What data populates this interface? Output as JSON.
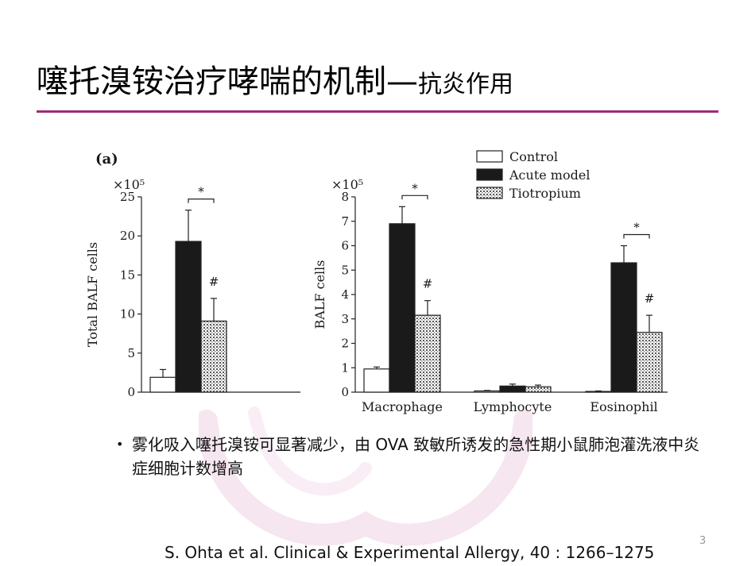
{
  "slide": {
    "title_main": "噻托溴铵治疗哮喘的机制—",
    "title_sub": "抗炎作用",
    "accent_color": "#9e2a78",
    "bullet_icon": "bullet-dot",
    "bullet_text": "雾化吸入噻托溴铵可显著减少，由 OVA 致敏所诱发的急性期小鼠肺泡灌洗液中炎症细胞计数增高",
    "page_number": "3",
    "citation": "S. Ohta et al. Clinical & Experimental Allergy, 40 : 1266–1275"
  },
  "chart_data": [
    {
      "type": "bar",
      "panel_label": "(a)",
      "scale_note": "×10⁵",
      "ylabel": "Total BALF cells",
      "ylim": [
        0,
        25
      ],
      "yticks": [
        "0",
        "5",
        "10",
        "15",
        "20",
        "25"
      ],
      "categories": [
        ""
      ],
      "series": [
        {
          "name": "Control",
          "values": [
            1.9
          ],
          "errors": [
            1.0
          ]
        },
        {
          "name": "Acute model",
          "values": [
            19.3
          ],
          "errors": [
            4.0
          ]
        },
        {
          "name": "Tiotropium",
          "values": [
            9.1
          ],
          "errors": [
            2.9
          ]
        }
      ],
      "annotations": {
        "bracket_star": "*",
        "hash": "#"
      }
    },
    {
      "type": "bar",
      "scale_note": "×10⁵",
      "ylabel": "BALF cells",
      "ylim": [
        0,
        8
      ],
      "yticks": [
        "0",
        "1",
        "2",
        "3",
        "4",
        "5",
        "6",
        "7",
        "8"
      ],
      "categories": [
        "Macrophage",
        "Lymphocyte",
        "Eosinophil"
      ],
      "series": [
        {
          "name": "Control",
          "values": [
            0.95,
            0.05,
            0.03
          ],
          "errors": [
            0.08,
            0.02,
            0.02
          ]
        },
        {
          "name": "Acute model",
          "values": [
            6.9,
            0.25,
            5.3
          ],
          "errors": [
            0.7,
            0.08,
            0.7
          ]
        },
        {
          "name": "Tiotropium",
          "values": [
            3.15,
            0.22,
            2.45
          ],
          "errors": [
            0.6,
            0.07,
            0.7
          ]
        }
      ],
      "legend": [
        "Control",
        "Acute model",
        "Tiotropium"
      ],
      "legend_position": "top-right",
      "annotations": {
        "bracket_star": "*",
        "hash": "#"
      }
    }
  ]
}
